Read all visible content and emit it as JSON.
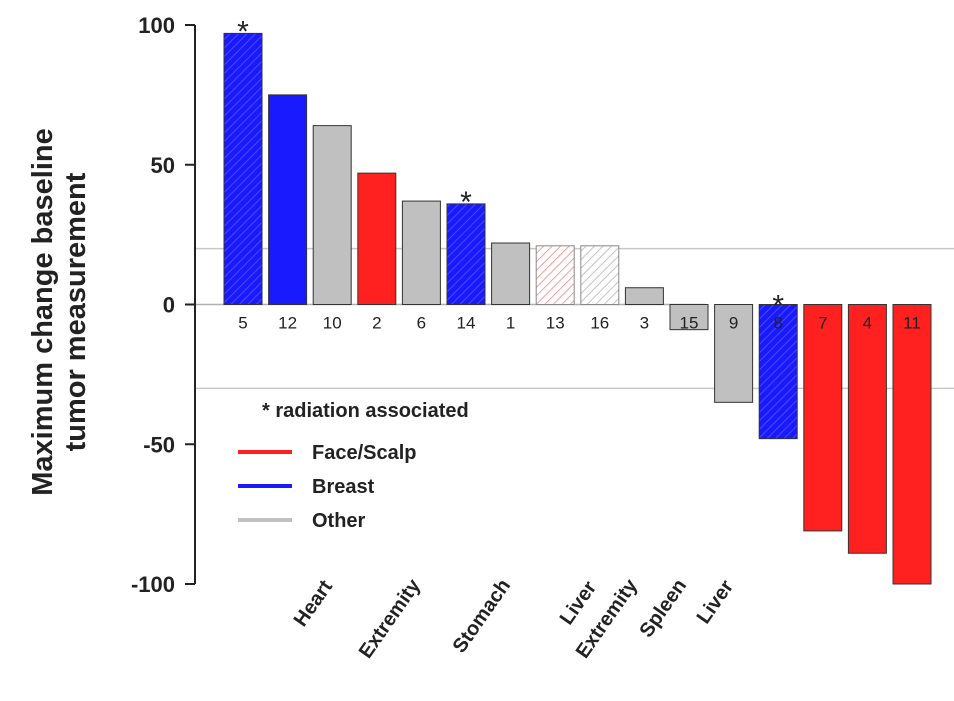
{
  "chart_data": {
    "type": "bar",
    "ylabel_line1": "Maximum change baseline",
    "ylabel_line2": "tumor measurement",
    "ylim": [
      -100,
      100
    ],
    "yticks": [
      100,
      50,
      0,
      -50,
      -100
    ],
    "reference_lines": [
      20,
      -30
    ],
    "legend": {
      "note": "* radiation associated",
      "entries": [
        {
          "label": "Face/Scalp",
          "color": "#ff2020"
        },
        {
          "label": "Breast",
          "color": "#1a1aff"
        },
        {
          "label": "Other",
          "color": "#c0c0c0"
        }
      ]
    },
    "bars": [
      {
        "id": "5",
        "value": 97,
        "group": "Breast",
        "star": true,
        "hatch": true
      },
      {
        "id": "12",
        "value": 75,
        "group": "Breast"
      },
      {
        "id": "10",
        "value": 64,
        "group": "Other"
      },
      {
        "id": "2",
        "value": 47,
        "group": "Face/Scalp"
      },
      {
        "id": "6",
        "value": 37,
        "group": "Other"
      },
      {
        "id": "14",
        "value": 36,
        "group": "Breast",
        "star": true,
        "hatch": true
      },
      {
        "id": "1",
        "value": 22,
        "group": "Other"
      },
      {
        "id": "13",
        "value": 21,
        "group": "Face/Scalp",
        "light": true
      },
      {
        "id": "16",
        "value": 21,
        "group": "Other",
        "light": true
      },
      {
        "id": "3",
        "value": 6,
        "group": "Other"
      },
      {
        "id": "15",
        "value": -9,
        "group": "Other"
      },
      {
        "id": "9",
        "value": -35,
        "group": "Other"
      },
      {
        "id": "8",
        "value": -48,
        "group": "Breast",
        "star": true,
        "hatch": true
      },
      {
        "id": "7",
        "value": -81,
        "group": "Face/Scalp"
      },
      {
        "id": "4",
        "value": -89,
        "group": "Face/Scalp"
      },
      {
        "id": "11",
        "value": -100,
        "group": "Face/Scalp"
      }
    ],
    "category_labels": [
      "Heart",
      "Extremity",
      "Stomach",
      "Liver",
      "Extremity",
      "Spleen",
      "Liver"
    ],
    "colors": {
      "Face/Scalp": "#ff2020",
      "Breast": "#1a1aff",
      "Other": "#c0c0c0",
      "reference_line": "#c8c8c8"
    }
  }
}
